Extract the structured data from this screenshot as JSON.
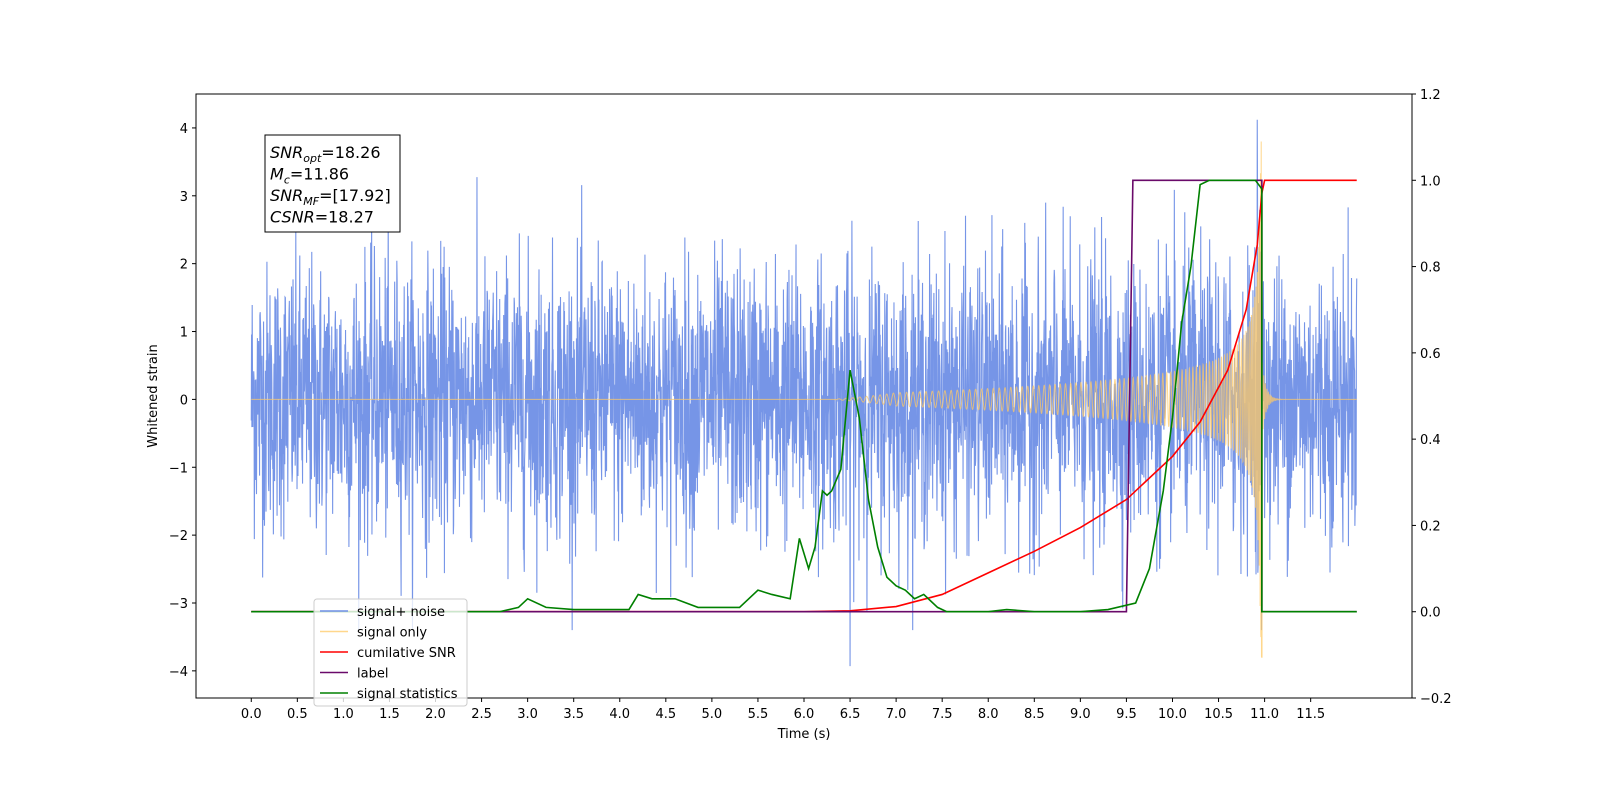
{
  "chart_data": {
    "type": "line",
    "xlabel": "Time (s)",
    "ylabel": "Whitened strain",
    "xlim": [
      -0.6,
      12.6
    ],
    "ylim": [
      -4.4,
      4.5
    ],
    "y2lim": [
      -0.2,
      1.2
    ],
    "x_ticks": [
      "0.0",
      "0.5",
      "1.0",
      "1.5",
      "2.0",
      "2.5",
      "3.0",
      "3.5",
      "4.0",
      "4.5",
      "5.0",
      "5.5",
      "6.0",
      "6.5",
      "7.0",
      "7.5",
      "8.0",
      "8.5",
      "9.0",
      "9.5",
      "10.0",
      "10.5",
      "11.0",
      "11.5"
    ],
    "y_ticks": [
      "−4",
      "−3",
      "−2",
      "−1",
      "0",
      "1",
      "2",
      "3",
      "4"
    ],
    "y2_ticks": [
      "−0.2",
      "0.0",
      "0.2",
      "0.4",
      "0.6",
      "0.8",
      "1.0",
      "1.2"
    ],
    "legend_position": "lower-left",
    "annotations": [
      {
        "base": "SNR",
        "sub": "opt",
        "value": "=18.26"
      },
      {
        "base": "M",
        "sub": "c",
        "value": "=11.86"
      },
      {
        "base": "SNR",
        "sub": "MF",
        "value": "=[17.92]"
      },
      {
        "base": "CSNR",
        "sub": "",
        "value": "=18.27"
      }
    ],
    "series": [
      {
        "name": "signal+ noise",
        "color": "#6f8fe6",
        "axis": "left",
        "x_range": [
          0.0,
          12.0
        ],
        "amplitude": 1.0,
        "extremes": {
          "max": 4.12,
          "min": -3.93,
          "x_max": 10.92,
          "x_min": 6.5
        }
      },
      {
        "name": "signal only",
        "color": "#ffc966",
        "axis": "left",
        "x_range": [
          0.0,
          12.0
        ],
        "merger_time": 10.97,
        "peak_amplitude": 3.8
      },
      {
        "name": "cumilative SNR",
        "color": "#ff0000",
        "axis": "right",
        "x": [
          0.0,
          6.0,
          6.5,
          7.0,
          7.5,
          8.0,
          8.5,
          9.0,
          9.5,
          10.0,
          10.3,
          10.6,
          10.8,
          10.92,
          10.97,
          11.0,
          12.0
        ],
        "y": [
          0.0,
          0.0,
          0.002,
          0.012,
          0.04,
          0.09,
          0.14,
          0.195,
          0.26,
          0.36,
          0.44,
          0.56,
          0.7,
          0.85,
          0.97,
          1.0,
          1.0
        ]
      },
      {
        "name": "label",
        "color": "#6a0a6a",
        "axis": "right",
        "x": [
          0.0,
          9.5,
          9.57,
          10.97,
          10.97,
          12.0
        ],
        "y": [
          0.0,
          0.0,
          1.0,
          1.0,
          0.0,
          0.0
        ]
      },
      {
        "name": "signal statistics",
        "color": "#008000",
        "axis": "right",
        "x": [
          0.0,
          2.7,
          2.9,
          3.0,
          3.2,
          3.5,
          3.9,
          4.1,
          4.2,
          4.35,
          4.6,
          4.85,
          5.0,
          5.3,
          5.5,
          5.65,
          5.85,
          5.95,
          6.05,
          6.12,
          6.2,
          6.25,
          6.3,
          6.4,
          6.5,
          6.6,
          6.7,
          6.8,
          6.9,
          7.0,
          7.1,
          7.2,
          7.3,
          7.35,
          7.45,
          7.55,
          8.0,
          8.2,
          8.5,
          9.0,
          9.3,
          9.6,
          9.75,
          9.9,
          10.0,
          10.1,
          10.2,
          10.3,
          10.4,
          10.9,
          10.97,
          10.97,
          11.2,
          12.0
        ],
        "y": [
          0.0,
          0.0,
          0.01,
          0.03,
          0.01,
          0.005,
          0.005,
          0.005,
          0.04,
          0.03,
          0.03,
          0.01,
          0.01,
          0.01,
          0.05,
          0.04,
          0.03,
          0.17,
          0.1,
          0.15,
          0.28,
          0.27,
          0.28,
          0.33,
          0.56,
          0.45,
          0.26,
          0.15,
          0.08,
          0.06,
          0.05,
          0.03,
          0.04,
          0.03,
          0.01,
          0.0,
          0.0,
          0.005,
          0.0,
          0.0,
          0.005,
          0.02,
          0.1,
          0.28,
          0.45,
          0.67,
          0.8,
          0.99,
          1.0,
          1.0,
          0.98,
          0.0,
          0.0,
          0.0
        ]
      }
    ]
  }
}
